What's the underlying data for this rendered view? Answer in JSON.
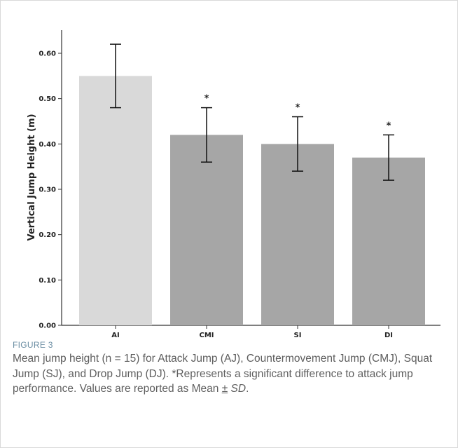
{
  "figure": {
    "label": "FIGURE 3",
    "caption_main": "Mean jump height (n = 15) for Attack Jump (AJ), Countermovement Jump (CMJ), Squat Jump (SJ), and Drop Jump (DJ). *Represents a significant difference to attack jump performance. Values are reported as Mean ",
    "caption_pm": "±",
    "caption_sd": "SD",
    "caption_end": "."
  },
  "chart_data": {
    "type": "bar",
    "title": "",
    "xlabel": "",
    "ylabel": "Vertical Jump Height (m)",
    "categories": [
      "AJ",
      "CMJ",
      "SJ",
      "DJ"
    ],
    "values": [
      0.55,
      0.42,
      0.4,
      0.37
    ],
    "error_sd": [
      0.07,
      0.06,
      0.06,
      0.05
    ],
    "significance": [
      "",
      "*",
      "*",
      "*"
    ],
    "colors": [
      "#d9d9d9",
      "#a6a6a6",
      "#a6a6a6",
      "#a6a6a6"
    ],
    "ylim": [
      0,
      0.65
    ],
    "yticks": [
      "0.00",
      "0.10",
      "0.20",
      "0.30",
      "0.40",
      "0.50",
      "0.60"
    ],
    "grid": false,
    "legend": "none"
  }
}
